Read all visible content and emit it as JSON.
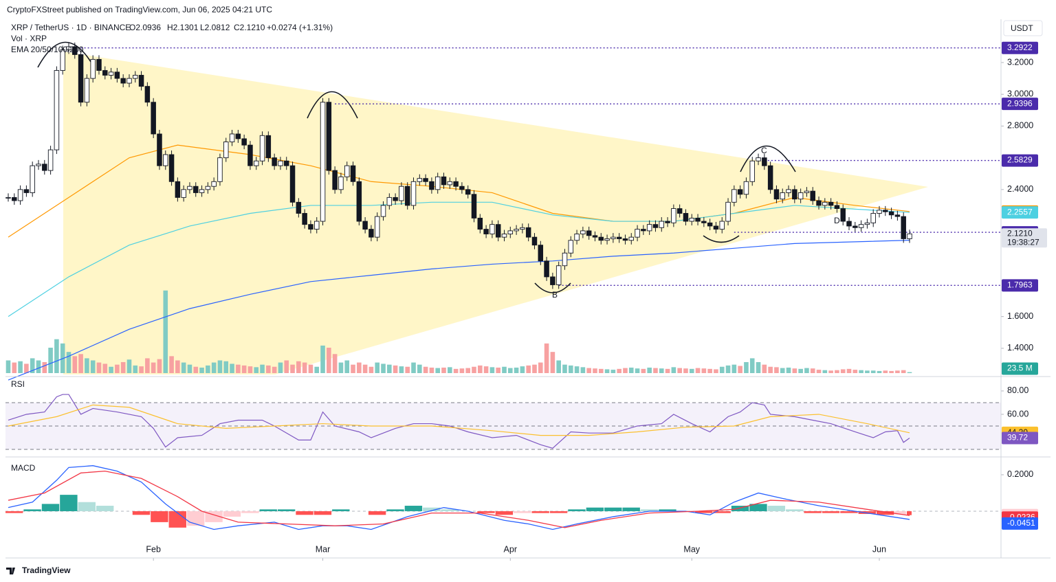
{
  "header": {
    "publisher": "CryptoFXStreet published on TradingView.com, Jun 06, 2025 04:21 UTC",
    "brand": "TradingView"
  },
  "chart_data": [
    {
      "type": "candlestick",
      "title": "XRP / TetherUS · 1D · BINANCE",
      "ohlc": [
        "O2.0936",
        "H2.1301",
        "L2.0812",
        "C2.1210"
      ],
      "change": "+0.0274 (+1.31%)",
      "currency": "USDT",
      "ema_legend": "EMA 20/50/100/200",
      "close": [
        2.35,
        2.33,
        2.4,
        2.38,
        2.55,
        2.56,
        2.52,
        2.65,
        3.15,
        3.28,
        3.3,
        3.25,
        2.95,
        3.1,
        3.22,
        3.15,
        3.12,
        3.14,
        3.1,
        3.07,
        3.1,
        3.12,
        3.05,
        2.95,
        2.75,
        2.55,
        2.62,
        2.45,
        2.35,
        2.4,
        2.42,
        2.38,
        2.4,
        2.42,
        2.45,
        2.6,
        2.7,
        2.75,
        2.72,
        2.68,
        2.55,
        2.58,
        2.74,
        2.6,
        2.55,
        2.58,
        2.55,
        2.32,
        2.25,
        2.18,
        2.15,
        2.2,
        2.95,
        2.52,
        2.4,
        2.48,
        2.55,
        2.45,
        2.2,
        2.15,
        2.1,
        2.23,
        2.3,
        2.35,
        2.33,
        2.42,
        2.3,
        2.45,
        2.47,
        2.45,
        2.4,
        2.48,
        2.43,
        2.45,
        2.42,
        2.4,
        2.37,
        2.22,
        2.15,
        2.12,
        2.18,
        2.1,
        2.12,
        2.14,
        2.15,
        2.16,
        2.1,
        2.05,
        1.95,
        1.85,
        1.8,
        1.92,
        2.0,
        2.08,
        2.12,
        2.14,
        2.11,
        2.1,
        2.08,
        2.09,
        2.1,
        2.09,
        2.08,
        2.1,
        2.15,
        2.14,
        2.18,
        2.16,
        2.2,
        2.19,
        2.28,
        2.25,
        2.2,
        2.22,
        2.2,
        2.19,
        2.17,
        2.15,
        2.2,
        2.32,
        2.4,
        2.37,
        2.45,
        2.58,
        2.6,
        2.55,
        2.4,
        2.34,
        2.38,
        2.4,
        2.34,
        2.38,
        2.39,
        2.33,
        2.3,
        2.32,
        2.3,
        2.28,
        2.2,
        2.17,
        2.16,
        2.18,
        2.19,
        2.25,
        2.27,
        2.26,
        2.24,
        2.23,
        2.09,
        2.121
      ],
      "last_label": "2.1210",
      "countdown": "19:38:27",
      "ylim": [
        1.235,
        3.464
      ],
      "yticks": [
        {
          "value": 3.2,
          "label": "3.2000"
        },
        {
          "value": 3.0,
          "label": "3.0000"
        },
        {
          "value": 2.8,
          "label": "2.8000"
        },
        {
          "value": 2.4,
          "label": "2.4000"
        },
        {
          "value": 1.6,
          "label": "1.6000"
        },
        {
          "value": 1.4,
          "label": "1.4000"
        }
      ],
      "xlim": [
        -0.5,
        164
      ],
      "xticks": [
        {
          "value": 24,
          "label": "Feb"
        },
        {
          "value": 52,
          "label": "Mar"
        },
        {
          "value": 83,
          "label": "Apr"
        },
        {
          "value": 113,
          "label": "May"
        },
        {
          "value": 144,
          "label": "Jun"
        }
      ],
      "levels": [
        3.2922,
        2.9396,
        2.5829,
        2.1306,
        1.7963
      ],
      "level_color": "#4a2bab",
      "up_color": "#ffffff",
      "down_color": "#131722",
      "annotations": [
        "B",
        "C",
        "D"
      ],
      "volume": {
        "name": "Vol · XRP",
        "ylim": [
          0,
          2400
        ],
        "up_color": "#80cbc4",
        "down_color": "#f7a1a1",
        "last_label": "23.5 M",
        "values": [
          300,
          250,
          280,
          220,
          350,
          300,
          260,
          600,
          800,
          700,
          500,
          400,
          450,
          350,
          300,
          250,
          220,
          150,
          200,
          260,
          320,
          180,
          160,
          350,
          250,
          330,
          1950,
          400,
          300,
          250,
          200,
          150,
          130,
          180,
          250,
          300,
          280,
          220,
          200,
          180,
          160,
          140,
          200,
          180,
          150,
          250,
          300,
          200,
          280,
          250,
          200,
          150,
          650,
          600,
          450,
          250,
          300,
          200,
          250,
          200,
          150,
          250,
          220,
          200,
          180,
          160,
          150,
          250,
          200,
          150,
          130,
          120,
          130,
          140,
          100,
          110,
          120,
          150,
          180,
          160,
          140,
          130,
          150,
          120,
          130,
          160,
          180,
          200,
          250,
          700,
          500,
          300,
          200,
          180,
          160,
          140,
          120,
          110,
          100,
          90,
          80,
          100,
          120,
          130,
          110,
          100,
          130,
          120,
          110,
          100,
          140,
          120,
          110,
          100,
          120,
          110,
          100,
          90,
          150,
          180,
          200,
          170,
          260,
          350,
          260,
          200,
          150,
          140,
          120,
          130,
          110,
          100,
          120,
          110,
          80,
          70,
          60,
          70,
          90,
          100,
          80,
          70,
          60,
          60,
          50,
          60,
          50,
          60,
          70,
          23.5
        ]
      },
      "series": [
        {
          "name": "EMA 20",
          "color": "#ff9800",
          "x": [
            0,
            10,
            20,
            28,
            40,
            50,
            60,
            70,
            80,
            90,
            100,
            110,
            120,
            130,
            140,
            149
          ],
          "values": [
            2.1,
            2.35,
            2.6,
            2.68,
            2.62,
            2.55,
            2.45,
            2.42,
            2.38,
            2.25,
            2.2,
            2.2,
            2.25,
            2.35,
            2.3,
            2.2615
          ]
        },
        {
          "name": "EMA 50",
          "color": "#4dd0e1",
          "x": [
            0,
            10,
            20,
            30,
            40,
            50,
            60,
            70,
            80,
            90,
            100,
            110,
            120,
            130,
            149
          ],
          "values": [
            1.6,
            1.85,
            2.05,
            2.17,
            2.25,
            2.3,
            2.3,
            2.32,
            2.32,
            2.24,
            2.2,
            2.2,
            2.25,
            2.3,
            2.2557
          ]
        },
        {
          "name": "EMA 200",
          "color": "#2962ff",
          "x": [
            0,
            10,
            20,
            30,
            40,
            50,
            60,
            70,
            80,
            90,
            100,
            110,
            120,
            130,
            149
          ],
          "values": [
            1.2,
            1.35,
            1.52,
            1.65,
            1.74,
            1.82,
            1.86,
            1.9,
            1.93,
            1.95,
            1.98,
            2.0,
            2.03,
            2.06,
            2.0805
          ]
        }
      ]
    },
    {
      "type": "line",
      "title": "RSI",
      "ylim": [
        25.3,
        88.2
      ],
      "yticks": [
        {
          "value": 80,
          "label": "80.00"
        },
        {
          "value": 60,
          "label": "60.00"
        }
      ],
      "bands": [
        30,
        50,
        70
      ],
      "band_color": "#ede7f6",
      "series": [
        {
          "name": "RSI",
          "color": "#7e57c2",
          "x": [
            0,
            3,
            6,
            8,
            9,
            10,
            12,
            14,
            18,
            22,
            24,
            26,
            28,
            32,
            35,
            38,
            42,
            44,
            48,
            50,
            52,
            54,
            58,
            60,
            64,
            67,
            70,
            73,
            76,
            80,
            84,
            88,
            90,
            93,
            96,
            100,
            104,
            108,
            110,
            113,
            116,
            119,
            121,
            123,
            125,
            126,
            130,
            133,
            136,
            140,
            143,
            145,
            147,
            148,
            149
          ],
          "values": [
            55,
            60,
            62,
            75,
            77,
            77,
            60,
            65,
            62,
            58,
            48,
            32,
            40,
            42,
            52,
            55,
            55,
            50,
            38,
            38,
            62,
            50,
            45,
            40,
            48,
            52,
            52,
            50,
            45,
            40,
            42,
            34,
            31,
            45,
            44,
            44,
            50,
            52,
            60,
            52,
            45,
            58,
            62,
            70,
            68,
            60,
            58,
            55,
            52,
            45,
            40,
            45,
            46,
            36,
            39.72
          ]
        },
        {
          "name": "RSI MA",
          "color": "#fbc02d",
          "x": [
            0,
            8,
            14,
            20,
            28,
            36,
            44,
            52,
            60,
            70,
            80,
            88,
            96,
            104,
            112,
            120,
            126,
            134,
            142,
            149
          ],
          "values": [
            50,
            58,
            68,
            66,
            52,
            48,
            50,
            52,
            50,
            50,
            46,
            42,
            42,
            45,
            49,
            50,
            58,
            60,
            52,
            44.2
          ],
          "last_label": "44.20"
        }
      ]
    },
    {
      "type": "macd",
      "title": "MACD",
      "ylim": [
        -0.249,
        0.279
      ],
      "yticks": [
        {
          "value": 0.2,
          "label": "0.2000"
        }
      ],
      "histogram": {
        "name": "Histogram",
        "x": [
          0,
          3,
          6,
          9,
          12,
          15,
          18,
          21,
          24,
          27,
          30,
          33,
          36,
          39,
          42,
          45,
          48,
          51,
          54,
          57,
          60,
          63,
          66,
          69,
          72,
          75,
          78,
          81,
          84,
          87,
          90,
          93,
          96,
          99,
          102,
          105,
          108,
          111,
          114,
          117,
          120,
          123,
          126,
          129,
          132,
          135,
          138,
          141,
          144,
          147,
          149
        ],
        "values": [
          -0.01,
          0.01,
          0.04,
          0.09,
          0.05,
          0.03,
          0.0,
          -0.02,
          -0.06,
          -0.09,
          -0.08,
          -0.06,
          -0.03,
          -0.01,
          0.01,
          0.01,
          -0.02,
          -0.02,
          0.01,
          0.0,
          -0.02,
          0.01,
          0.03,
          0.02,
          0.01,
          0.0,
          -0.01,
          -0.02,
          -0.01,
          -0.01,
          -0.01,
          0.01,
          0.02,
          0.02,
          0.02,
          0.01,
          0.01,
          0.0,
          -0.01,
          -0.01,
          0.03,
          0.04,
          0.03,
          0.01,
          -0.01,
          -0.01,
          -0.01,
          -0.015,
          -0.02,
          -0.018,
          -0.0215
        ],
        "colors": [
          "#26a69a",
          "#b2dfdb",
          "#ff5252",
          "#ffcdd2"
        ]
      },
      "series": [
        {
          "name": "MACD",
          "color": "#2962ff",
          "x": [
            0,
            4,
            8,
            10,
            14,
            18,
            22,
            26,
            30,
            34,
            38,
            44,
            48,
            52,
            56,
            60,
            66,
            72,
            76,
            82,
            86,
            90,
            94,
            100,
            106,
            112,
            116,
            120,
            124,
            128,
            134,
            140,
            146,
            149
          ],
          "values": [
            0.02,
            0.05,
            0.17,
            0.24,
            0.25,
            0.22,
            0.16,
            0.04,
            -0.06,
            -0.1,
            -0.08,
            -0.06,
            -0.1,
            -0.08,
            -0.08,
            -0.1,
            -0.03,
            0.02,
            0.0,
            -0.05,
            -0.07,
            -0.1,
            -0.07,
            -0.03,
            0.0,
            0.0,
            -0.02,
            0.05,
            0.1,
            0.07,
            0.03,
            0.0,
            -0.03,
            -0.0451
          ]
        },
        {
          "name": "Signal",
          "color": "#f23645",
          "x": [
            0,
            6,
            12,
            16,
            22,
            28,
            32,
            38,
            46,
            54,
            62,
            70,
            78,
            86,
            92,
            98,
            106,
            114,
            120,
            126,
            134,
            142,
            149
          ],
          "values": [
            0.06,
            0.1,
            0.21,
            0.22,
            0.18,
            0.08,
            0.0,
            -0.06,
            -0.07,
            -0.08,
            -0.07,
            -0.01,
            -0.01,
            -0.05,
            -0.09,
            -0.05,
            -0.01,
            0.0,
            0.01,
            0.06,
            0.05,
            0.01,
            -0.0236
          ]
        }
      ]
    }
  ]
}
